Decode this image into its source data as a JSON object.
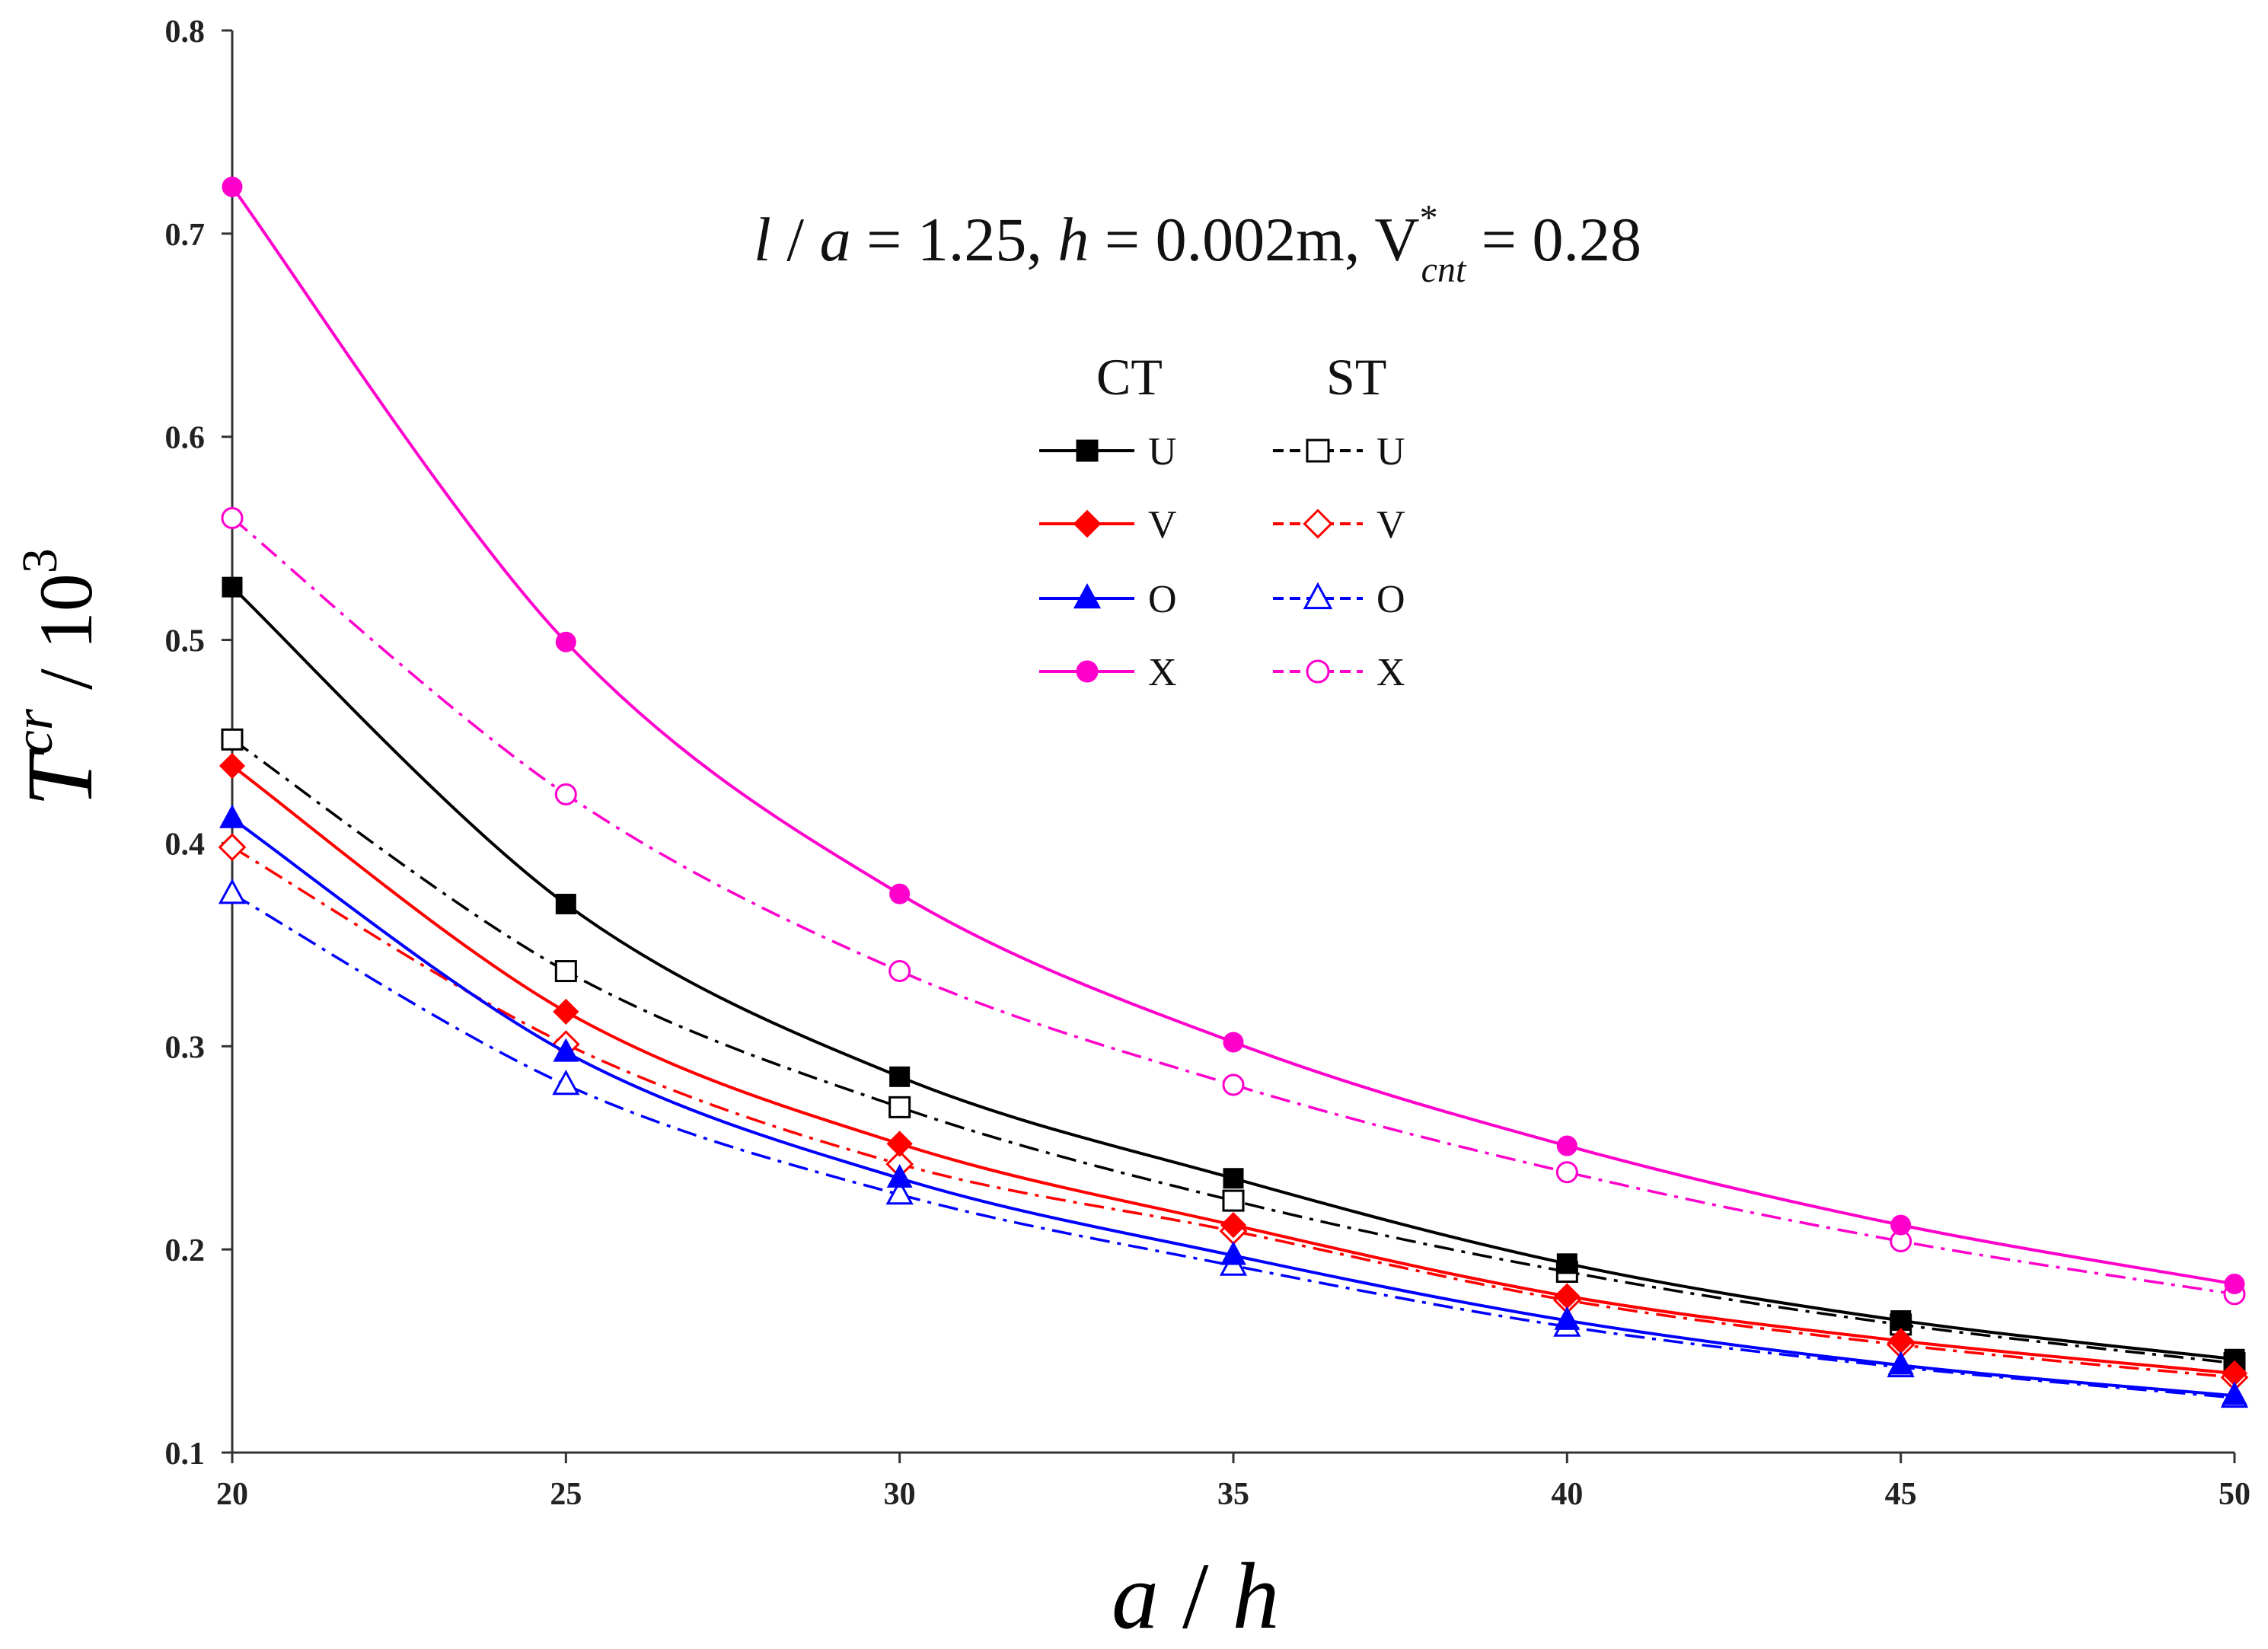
{
  "chart_data": {
    "type": "line",
    "annotation": {
      "l_sym": "l",
      "a_sym": "a",
      "l_over_a": "1.25",
      "h_sym": "h",
      "h_val": "0.002m",
      "v_sym": "V",
      "v_sup": "*",
      "v_sub": "cnt",
      "v_val": "0.28"
    },
    "xlabel": {
      "num": "a",
      "slash": "/",
      "den": "h"
    },
    "ylabel": {
      "main": "T",
      "sup": "cr",
      "slash": "/",
      "base": "10",
      "exp": "3"
    },
    "x_ticks": [
      "20",
      "25",
      "30",
      "35",
      "40",
      "45",
      "50"
    ],
    "y_ticks": [
      "0.1",
      "0.2",
      "0.3",
      "0.4",
      "0.5",
      "0.6",
      "0.7",
      "0.8"
    ],
    "xlim": [
      20,
      50
    ],
    "ylim": [
      0.1,
      0.8
    ],
    "x": [
      20,
      25,
      30,
      35,
      40,
      45,
      50
    ],
    "legend": {
      "group_ct": "CT",
      "group_st": "ST"
    },
    "series": [
      {
        "name": "U",
        "group": "CT",
        "color": "#000000",
        "marker": "square",
        "filled": true,
        "dash": "solid",
        "values": [
          0.526,
          0.37,
          0.285,
          0.235,
          0.193,
          0.165,
          0.146
        ]
      },
      {
        "name": "V",
        "group": "CT",
        "color": "#ff0000",
        "marker": "diamond",
        "filled": true,
        "dash": "solid",
        "values": [
          0.438,
          0.317,
          0.252,
          0.212,
          0.177,
          0.155,
          0.139
        ]
      },
      {
        "name": "O",
        "group": "CT",
        "color": "#0000ff",
        "marker": "triangle",
        "filled": true,
        "dash": "solid",
        "values": [
          0.412,
          0.297,
          0.235,
          0.197,
          0.165,
          0.143,
          0.128
        ]
      },
      {
        "name": "X",
        "group": "CT",
        "color": "#ff00cc",
        "marker": "circle",
        "filled": true,
        "dash": "solid",
        "values": [
          0.723,
          0.499,
          0.375,
          0.302,
          0.251,
          0.212,
          0.183
        ]
      },
      {
        "name": "U",
        "group": "ST",
        "color": "#000000",
        "marker": "square",
        "filled": false,
        "dash": "dashdot",
        "values": [
          0.451,
          0.337,
          0.27,
          0.224,
          0.189,
          0.163,
          0.144
        ]
      },
      {
        "name": "V",
        "group": "ST",
        "color": "#ff0000",
        "marker": "diamond",
        "filled": false,
        "dash": "dashdot",
        "values": [
          0.398,
          0.301,
          0.242,
          0.209,
          0.175,
          0.153,
          0.137
        ]
      },
      {
        "name": "O",
        "group": "ST",
        "color": "#0000ff",
        "marker": "triangle",
        "filled": false,
        "dash": "dashdot",
        "values": [
          0.375,
          0.281,
          0.227,
          0.192,
          0.162,
          0.142,
          0.127
        ]
      },
      {
        "name": "X",
        "group": "ST",
        "color": "#ff00cc",
        "marker": "circle",
        "filled": false,
        "dash": "dashdot",
        "values": [
          0.56,
          0.424,
          0.337,
          0.281,
          0.238,
          0.204,
          0.178
        ]
      }
    ]
  }
}
